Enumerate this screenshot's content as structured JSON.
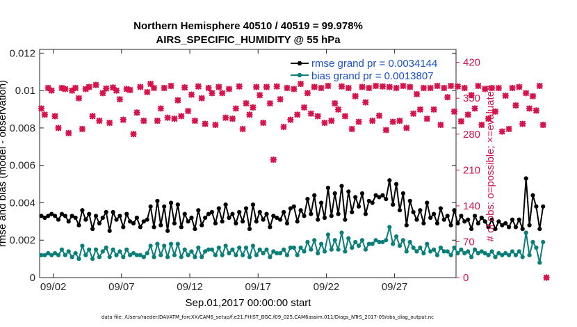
{
  "chart_data": {
    "type": "line",
    "title": "Northern Hemisphere 40510 / 40519 = 99.978%",
    "subtitle": "AIRS_SPECIFIC_HUMIDITY @ 55 hPa",
    "xlabel": "Sep.01,2017 00:00:00 start",
    "ylabel": "rmse and bias (model - observation)",
    "y2label": "# of obs: o=possible; ×=evaluated",
    "xlim": [
      0,
      30.5
    ],
    "ylim": [
      0,
      0.0122
    ],
    "y2lim": [
      0,
      445.3
    ],
    "x_ticks": [
      1,
      6,
      11,
      16,
      21,
      26
    ],
    "x_tick_labels": [
      "09/02",
      "09/07",
      "09/12",
      "09/17",
      "09/22",
      "09/27"
    ],
    "y_ticks": [
      0,
      0.002,
      0.004,
      0.006,
      0.008,
      0.01,
      0.012
    ],
    "y_tick_labels": [
      "0",
      "0.002",
      "0.004",
      "0.006",
      "0.008",
      "0.01",
      "0.012"
    ],
    "y2_ticks": [
      0,
      70,
      140,
      210,
      280,
      350,
      420
    ],
    "y2_tick_labels": [
      "0",
      "70",
      "140",
      "210",
      "280",
      "350",
      "420"
    ],
    "series": [
      {
        "name": "rmse grand pr = 0.0034144",
        "color": "#000000",
        "axis": "left",
        "x_start": 0.125,
        "x_step": 0.25,
        "values": [
          0.0033,
          0.0032,
          0.0033,
          0.0034,
          0.0033,
          0.0031,
          0.0034,
          0.0033,
          0.003,
          0.0033,
          0.0032,
          0.0028,
          0.0036,
          0.0031,
          0.0034,
          0.0026,
          0.0033,
          0.0029,
          0.0032,
          0.0035,
          0.0025,
          0.0035,
          0.0031,
          0.0033,
          0.0027,
          0.0034,
          0.003,
          0.0029,
          0.0032,
          0.0027,
          0.003,
          0.0031,
          0.0038,
          0.0027,
          0.0041,
          0.0028,
          0.0038,
          0.0025,
          0.004,
          0.0029,
          0.0039,
          0.0027,
          0.0034,
          0.003,
          0.0032,
          0.0026,
          0.0036,
          0.0028,
          0.0032,
          0.0034,
          0.0035,
          0.0029,
          0.0037,
          0.003,
          0.0039,
          0.0032,
          0.0034,
          0.0029,
          0.0035,
          0.003,
          0.0037,
          0.0026,
          0.0039,
          0.003,
          0.0035,
          0.0031,
          0.0034,
          0.0027,
          0.0033,
          0.0032,
          0.0031,
          0.0035,
          0.0029,
          0.0037,
          0.0038,
          0.003,
          0.0036,
          0.0033,
          0.0042,
          0.0034,
          0.0044,
          0.0031,
          0.004,
          0.0032,
          0.0048,
          0.0033,
          0.0045,
          0.0034,
          0.0049,
          0.0031,
          0.0046,
          0.0035,
          0.0043,
          0.0038,
          0.0045,
          0.0034,
          0.0041,
          0.004,
          0.0044,
          0.0043,
          0.0044,
          0.0042,
          0.0052,
          0.0039,
          0.005,
          0.0036,
          0.0045,
          0.0028,
          0.0041,
          0.0035,
          0.0031,
          0.0036,
          0.0029,
          0.004,
          0.0032,
          0.0034,
          0.0029,
          0.0037,
          0.0031,
          0.0033,
          0.0028,
          0.0036,
          0.0029,
          0.0033,
          0.003,
          0.0031,
          0.0026,
          0.0033,
          0.0029,
          0.0032,
          0.003,
          0.0027,
          0.0031,
          0.0026,
          0.003,
          0.0028,
          0.0029,
          0.0027,
          0.0031,
          0.0027,
          0.0031,
          0.0026,
          0.0053,
          0.0028,
          0.0044,
          0.0038,
          0.0026,
          0.0038
        ]
      },
      {
        "name": "bias grand pr = 0.0013807",
        "color": "#0a7f7a",
        "axis": "left",
        "x_start": 0.125,
        "x_step": 0.25,
        "values": [
          0.0012,
          0.0012,
          0.0013,
          0.0012,
          0.0013,
          0.0012,
          0.0015,
          0.0012,
          0.0014,
          0.0011,
          0.0013,
          0.001,
          0.0017,
          0.0012,
          0.0015,
          0.001,
          0.0015,
          0.0011,
          0.0014,
          0.0016,
          0.0011,
          0.0015,
          0.0012,
          0.0014,
          0.0011,
          0.0015,
          0.0012,
          0.0013,
          0.0012,
          0.0012,
          0.0011,
          0.0013,
          0.0017,
          0.0011,
          0.0018,
          0.0012,
          0.0017,
          0.0011,
          0.0018,
          0.0012,
          0.0018,
          0.0011,
          0.0015,
          0.0012,
          0.0014,
          0.0011,
          0.0016,
          0.0011,
          0.0014,
          0.0015,
          0.0015,
          0.0012,
          0.0016,
          0.0012,
          0.0017,
          0.0013,
          0.0015,
          0.0012,
          0.0016,
          0.0012,
          0.0016,
          0.0011,
          0.0017,
          0.0012,
          0.0015,
          0.0013,
          0.0015,
          0.0011,
          0.0014,
          0.0013,
          0.0013,
          0.0015,
          0.0012,
          0.0016,
          0.0016,
          0.0012,
          0.0016,
          0.0014,
          0.0019,
          0.0015,
          0.002,
          0.0013,
          0.0018,
          0.0014,
          0.0023,
          0.0015,
          0.002,
          0.0015,
          0.0024,
          0.0014,
          0.0021,
          0.0016,
          0.0019,
          0.0017,
          0.002,
          0.0015,
          0.0018,
          0.0018,
          0.002,
          0.0019,
          0.0019,
          0.002,
          0.0027,
          0.0018,
          0.0022,
          0.0017,
          0.002,
          0.0014,
          0.0019,
          0.0016,
          0.0014,
          0.0016,
          0.0013,
          0.0018,
          0.0014,
          0.0015,
          0.0012,
          0.0016,
          0.0014,
          0.0014,
          0.0012,
          0.0016,
          0.0013,
          0.0015,
          0.0013,
          0.0014,
          0.0011,
          0.0015,
          0.0013,
          0.0014,
          0.0013,
          0.0012,
          0.0014,
          0.0011,
          0.0013,
          0.0012,
          0.0013,
          0.0012,
          0.0014,
          0.0012,
          0.0014,
          0.0011,
          0.0024,
          0.0012,
          0.0019,
          0.0016,
          0.0008,
          0.0019
        ]
      },
      {
        "name": "# of obs evaluated",
        "color": "#d6134b",
        "axis": "right",
        "marker": "x",
        "x_start": 0.125,
        "x_step": 0.25,
        "values": [
          330,
          318,
          370,
          365,
          315,
          292,
          370,
          368,
          282,
          365,
          370,
          350,
          290,
          368,
          372,
          315,
          376,
          306,
          360,
          369,
          302,
          371,
          365,
          348,
          308,
          368,
          366,
          280,
          322,
          372,
          306,
          362,
          378,
          370,
          306,
          330,
          370,
          312,
          374,
          310,
          346,
          315,
          371,
          325,
          357,
          306,
          373,
          350,
          300,
          370,
          360,
          298,
          372,
          360,
          312,
          368,
          310,
          330,
          373,
          290,
          340,
          318,
          332,
          372,
          356,
          302,
          372,
          340,
          230,
          373,
          348,
          294,
          370,
          308,
          368,
          318,
          378,
          332,
          360,
          320,
          372,
          315,
          370,
          302,
          374,
          306,
          340,
          328,
          373,
          315,
          370,
          290,
          354,
          304,
          372,
          342,
          370,
          306,
          374,
          316,
          373,
          288,
          372,
          304,
          370,
          306,
          374,
          292,
          372,
          320,
          358,
          328,
          370,
          310,
          370,
          328,
          374,
          298,
          370,
          352,
          374,
          324,
          373,
          305,
          370,
          318,
          356,
          330,
          374,
          298,
          368,
          310,
          370,
          324,
          370,
          285,
          355,
          290,
          370,
          336,
          372,
          300,
          360,
          330,
          354,
          326,
          374,
          298,
          0
        ]
      }
    ],
    "legend": [
      "rmse grand pr = 0.0034144",
      "bias grand pr = 0.0013807"
    ],
    "legend_position": "top-right",
    "grid": false
  },
  "footer": {
    "filepath": "data file: /Users/raeder/DAI/ATM_forcXX/CAM6_setup/f.e21.FHIST_BGC.f09_025.CAM6assim.011/Diags_NTrS_2017-09/obs_diag_output.nc"
  },
  "colors": {
    "rmse": "#000000",
    "bias": "#0a7f7a",
    "obs": "#d6134b",
    "legend_text": "#1a4fcf"
  }
}
